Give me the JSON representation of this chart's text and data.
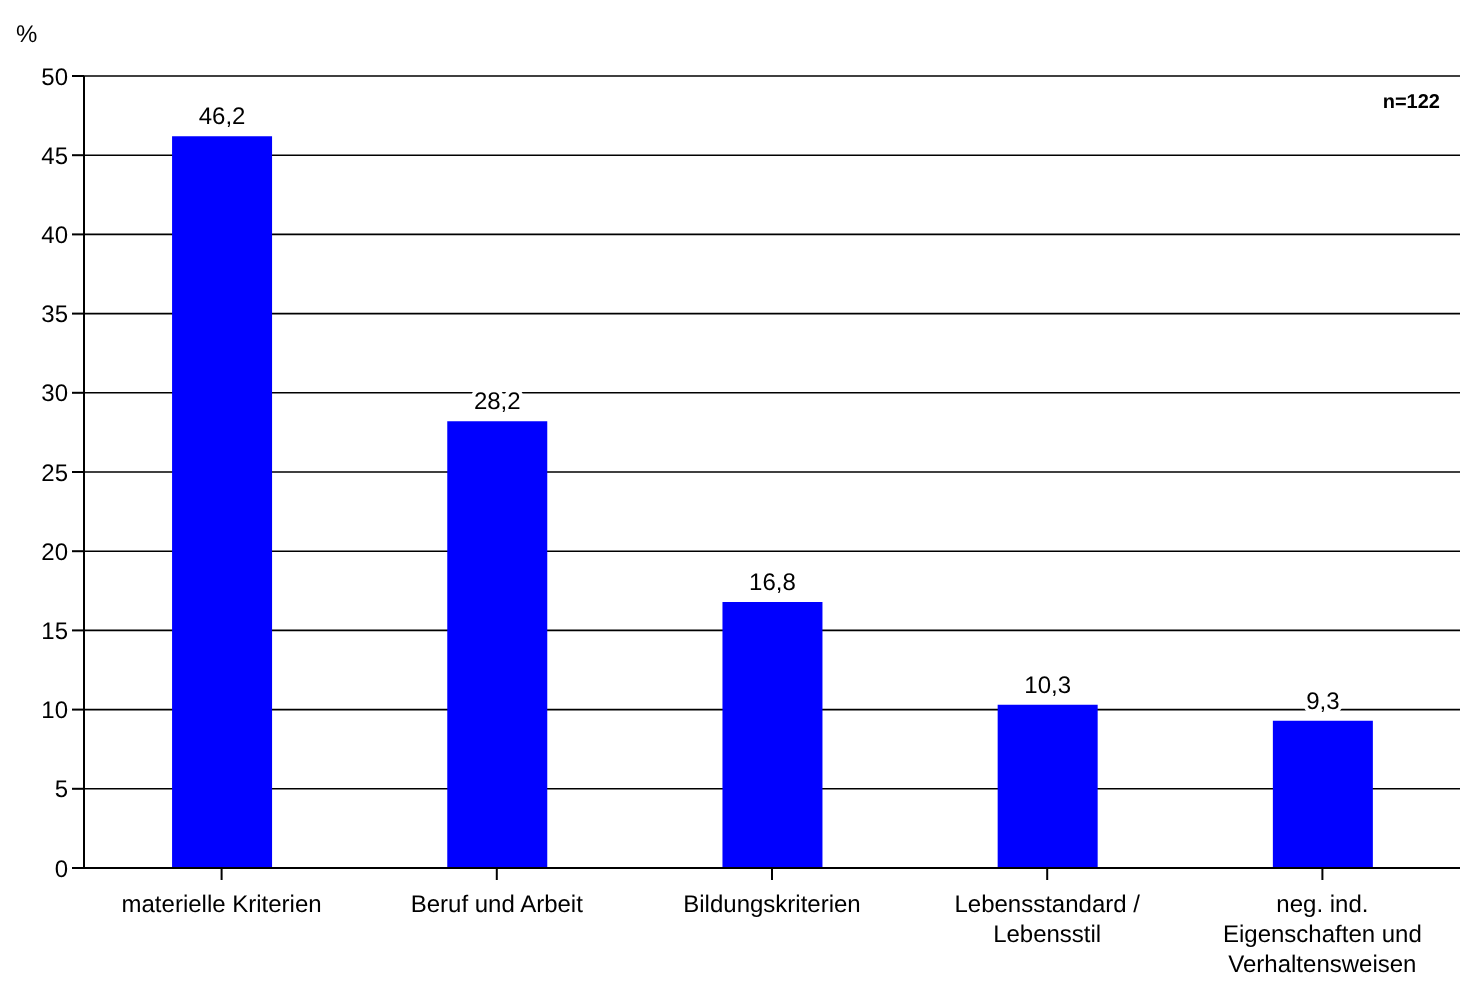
{
  "chart_data": {
    "type": "bar",
    "ylabel": "%",
    "categories": [
      "materielle Kriterien",
      "Beruf und Arbeit",
      "Bildungskriterien",
      "Lebensstandard / Lebensstil",
      "neg. ind. Eigenschaften und Verhaltensweisen"
    ],
    "values": [
      46.2,
      28.2,
      16.8,
      10.3,
      9.3
    ],
    "color": "#0000ff",
    "ylim": [
      0,
      50
    ],
    "yticks": [
      0,
      5,
      10,
      15,
      20,
      25,
      30,
      35,
      40,
      45,
      50
    ],
    "grid": "y",
    "value_labels": [
      "46,2",
      "28,2",
      "16,8",
      "10,3",
      "9,3"
    ],
    "annotations": [
      "n=122"
    ]
  }
}
